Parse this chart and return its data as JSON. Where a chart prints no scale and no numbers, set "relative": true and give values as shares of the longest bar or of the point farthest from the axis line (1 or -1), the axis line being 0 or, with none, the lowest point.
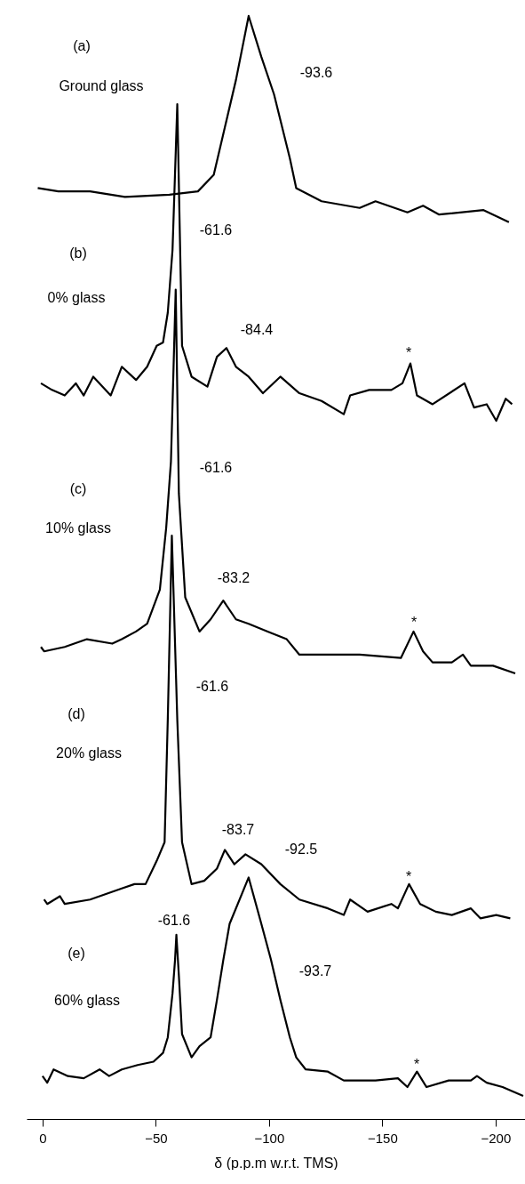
{
  "chart_data": {
    "type": "line",
    "relative": true,
    "xlim": [
      7,
      -213
    ],
    "xticks": [
      0,
      -50,
      -100,
      -150,
      -200
    ],
    "xlabel": "δ (p.p.m w.r.t. TMS)",
    "series": [
      {
        "color": "#000000",
        "x": [
          2.1,
          -7.0,
          -21.0,
          -36.4,
          -56.0,
          -68.6,
          -75.6,
          -79.8,
          -85.4,
          -91.0,
          -96.6,
          -102.2,
          -109.2,
          -112.0,
          -123.2,
          -140.0,
          -147.0,
          -161.1,
          -168.0,
          -175.1,
          -194.7,
          -205.9
        ],
        "values": [
          0.844,
          0.841,
          0.841,
          0.836,
          0.838,
          0.841,
          0.856,
          0.893,
          0.942,
          1,
          0.963,
          0.929,
          0.871,
          0.844,
          0.832,
          0.826,
          0.832,
          0.822,
          0.828,
          0.82,
          0.824,
          0.813
        ]
      },
      {
        "color": "#000000",
        "x": [
          0.7,
          -4.2,
          -9.8,
          -14.7,
          -18.2,
          -22.4,
          -30.1,
          -35.0,
          -41.3,
          -46.2,
          -50.4,
          -53.2,
          -55.3,
          -57.4,
          -59.5,
          -61.6,
          -65.8,
          -72.8,
          -77.0,
          -81.2,
          -85.4,
          -91.0,
          -97.3,
          -105.0,
          -113.4,
          -123.2,
          -133.0,
          -135.8,
          -144.2,
          -154.0,
          -158.9,
          -162.4,
          -165.3,
          -172.2,
          -186.3,
          -190.5,
          -196.1,
          -200.3,
          -204.5,
          -207.3
        ],
        "values": [
          0.667,
          0.661,
          0.656,
          0.667,
          0.656,
          0.673,
          0.656,
          0.682,
          0.67,
          0.682,
          0.701,
          0.704,
          0.731,
          0.788,
          0.92,
          0.701,
          0.673,
          0.664,
          0.691,
          0.699,
          0.682,
          0.673,
          0.658,
          0.673,
          0.658,
          0.651,
          0.639,
          0.656,
          0.661,
          0.661,
          0.667,
          0.685,
          0.656,
          0.648,
          0.667,
          0.645,
          0.648,
          0.633,
          0.653,
          0.648
        ]
      },
      {
        "color": "#000000",
        "x": [
          0.7,
          -0.7,
          -9.8,
          -19.6,
          -30.8,
          -35.0,
          -41.3,
          -46.2,
          -51.8,
          -54.6,
          -56.7,
          -58.8,
          -60.2,
          -63.0,
          -69.3,
          -74.2,
          -79.8,
          -85.4,
          -91.0,
          -99.4,
          -107.8,
          -113.4,
          -126.0,
          -140.0,
          -158.2,
          -163.8,
          -168.0,
          -172.2,
          -180.7,
          -185.6,
          -189.1,
          -198.9,
          -208.7
        ],
        "values": [
          0.428,
          0.424,
          0.428,
          0.435,
          0.431,
          0.435,
          0.442,
          0.449,
          0.48,
          0.536,
          0.596,
          0.752,
          0.567,
          0.473,
          0.442,
          0.453,
          0.47,
          0.453,
          0.449,
          0.442,
          0.435,
          0.421,
          0.421,
          0.421,
          0.418,
          0.442,
          0.424,
          0.414,
          0.414,
          0.421,
          0.411,
          0.411,
          0.404
        ]
      },
      {
        "color": "#000000",
        "x": [
          -0.7,
          -2.1,
          -7.7,
          -9.8,
          -21.0,
          -35.0,
          -40.6,
          -45.5,
          -50.4,
          -53.9,
          -55.3,
          -57.1,
          -59.5,
          -61.6,
          -65.8,
          -71.4,
          -77.0,
          -80.5,
          -84.7,
          -89.6,
          -96.6,
          -105.0,
          -113.4,
          -126.0,
          -133.0,
          -135.8,
          -143.5,
          -154.0,
          -156.9,
          -161.8,
          -166.7,
          -173.6,
          -180.7,
          -189.1,
          -193.3,
          -200.3,
          -206.5
        ],
        "values": [
          0.199,
          0.195,
          0.202,
          0.195,
          0.199,
          0.209,
          0.213,
          0.213,
          0.234,
          0.251,
          0.362,
          0.529,
          0.362,
          0.251,
          0.213,
          0.216,
          0.227,
          0.244,
          0.231,
          0.24,
          0.231,
          0.213,
          0.199,
          0.191,
          0.185,
          0.199,
          0.188,
          0.195,
          0.191,
          0.213,
          0.195,
          0.188,
          0.185,
          0.191,
          0.182,
          0.185,
          0.182
        ]
      },
      {
        "color": "#000000",
        "x": [
          0,
          -2.1,
          -4.9,
          -11.2,
          -18.2,
          -25.2,
          -29.4,
          -35.0,
          -42.0,
          -49.0,
          -53.2,
          -55.3,
          -57.4,
          -58.5,
          -59.1,
          -60.2,
          -61.6,
          -65.8,
          -69.3,
          -74.2,
          -77.0,
          -79.8,
          -82.6,
          -91.0,
          -96.6,
          -100.8,
          -105.0,
          -109.2,
          -112.0,
          -116.2,
          -126.0,
          -133.0,
          -147.0,
          -156.9,
          -161.1,
          -165.3,
          -169.5,
          -179.3,
          -189.1,
          -191.8,
          -196.1,
          -203.1,
          -212.2
        ],
        "values": [
          0.039,
          0.033,
          0.045,
          0.039,
          0.037,
          0.045,
          0.039,
          0.045,
          0.049,
          0.052,
          0.06,
          0.074,
          0.114,
          0.144,
          0.167,
          0.13,
          0.077,
          0.056,
          0.066,
          0.074,
          0.108,
          0.144,
          0.177,
          0.219,
          0.177,
          0.145,
          0.108,
          0.074,
          0.056,
          0.045,
          0.043,
          0.035,
          0.035,
          0.037,
          0.029,
          0.043,
          0.029,
          0.035,
          0.035,
          0.039,
          0.033,
          0.029,
          0.021
        ]
      }
    ],
    "annotations": [
      "(a)",
      "Ground glass",
      "-93.6",
      "-61.6",
      "(b)",
      "0% glass",
      "-84.4",
      "*",
      "-61.6",
      "(c)",
      "10% glass",
      "-83.2",
      "*",
      "-61.6",
      "(d)",
      "20% glass",
      "-83.7",
      "-92.5",
      "*",
      "-61.6",
      "(e)",
      "-93.7",
      "60% glass",
      "*"
    ]
  }
}
